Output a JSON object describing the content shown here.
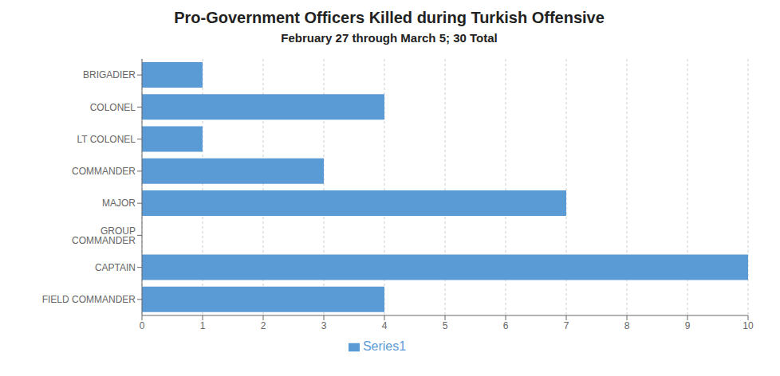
{
  "chart_data": {
    "type": "bar",
    "orientation": "horizontal",
    "title": "Pro-Government Officers Killed during Turkish Offensive",
    "subtitle": "February 27 through March 5; 30 Total",
    "categories": [
      "BRIGADIER",
      "COLONEL",
      "LT COLONEL",
      "COMMANDER",
      "MAJOR",
      "GROUP COMMANDER",
      "CAPTAIN",
      "FIELD COMMANDER"
    ],
    "series": [
      {
        "name": "Series1",
        "color": "#5B9BD5",
        "values": [
          1,
          4,
          1,
          3,
          7,
          0,
          10,
          4
        ]
      }
    ],
    "xlim": [
      0,
      10
    ],
    "xticks": [
      0,
      1,
      2,
      3,
      4,
      5,
      6,
      7,
      8,
      9,
      10
    ],
    "grid": true,
    "legend": "bottom"
  }
}
